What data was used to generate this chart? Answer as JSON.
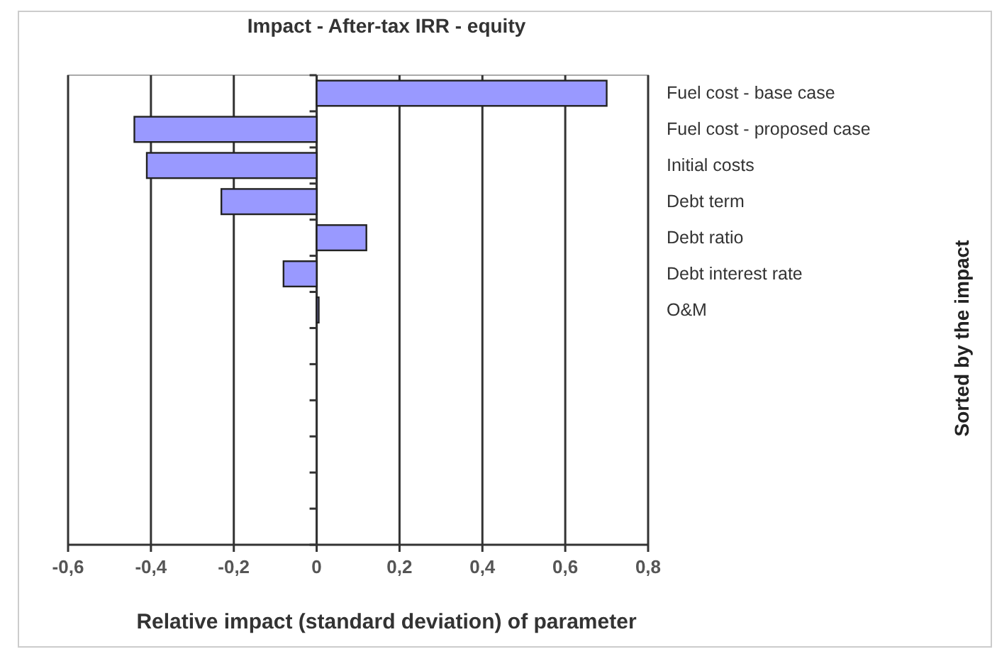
{
  "chart_data": {
    "type": "bar",
    "orientation": "horizontal",
    "title": "Impact - After-tax IRR - equity",
    "xlabel": "Relative impact (standard deviation) of parameter",
    "ylabel": "Sorted by the impact",
    "categories": [
      "Fuel cost - base case",
      "Fuel cost - proposed case",
      "Initial costs",
      "Debt term",
      "Debt ratio",
      "Debt interest rate",
      "O&M",
      null,
      null,
      null,
      null,
      null,
      null
    ],
    "values": [
      0.7,
      -0.44,
      -0.41,
      -0.23,
      0.12,
      -0.08,
      0.005,
      null,
      null,
      null,
      null,
      null,
      null
    ],
    "color": "#9999ff",
    "xlim": [
      -0.6,
      0.8
    ],
    "xticks": [
      {
        "value": -0.6,
        "label": "-0,6"
      },
      {
        "value": -0.4,
        "label": "-0,4"
      },
      {
        "value": -0.2,
        "label": "-0,2"
      },
      {
        "value": 0,
        "label": "0"
      },
      {
        "value": 0.2,
        "label": "0,2"
      },
      {
        "value": 0.4,
        "label": "0,4"
      },
      {
        "value": 0.6,
        "label": "0,6"
      },
      {
        "value": 0.8,
        "label": "0,8"
      }
    ],
    "grid": "x"
  }
}
